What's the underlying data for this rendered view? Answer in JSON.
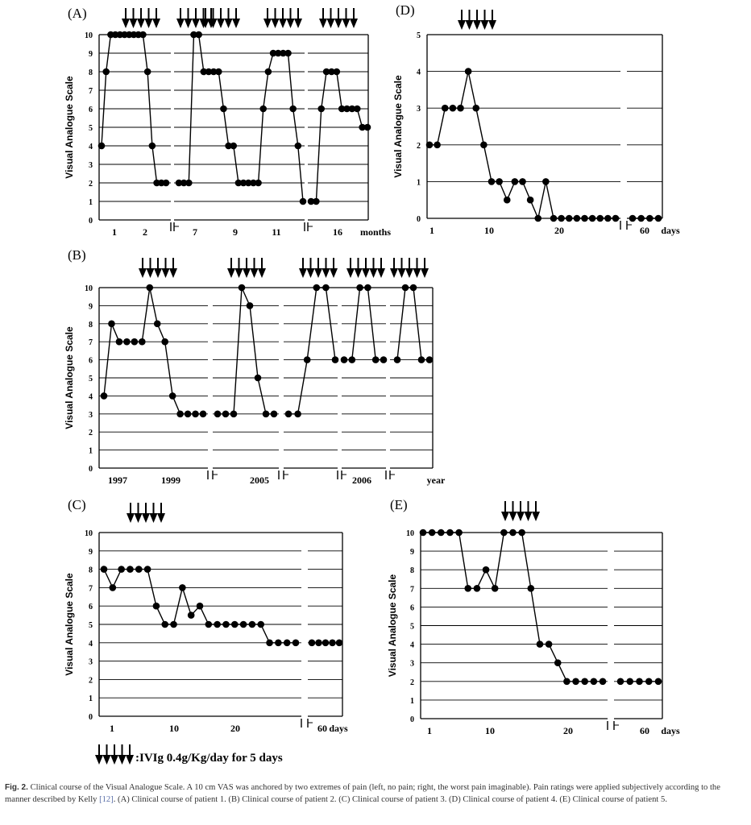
{
  "caption": {
    "label": "Fig. 2.",
    "text": "Clinical course of the Visual Analogue Scale. A 10 cm VAS was anchored by two extremes of pain (left, no pain; right, the worst pain imaginable). Pain ratings were applied subjectively according to the manner described by Kelly ",
    "ref": "[12]",
    "text_after": ". (A) Clinical course of patient 1. (B) Clinical course of patient 2. (C) Clinical course of patient 3. (D) Clinical course of patient 4. (E) Clinical course of patient 5."
  },
  "legend": {
    "text": ":IVIg 0.4g/Kg/day for 5 days"
  },
  "colors": {
    "line": "#000000",
    "grid": "#000000",
    "text": "#000000"
  },
  "chart_data": [
    {
      "id": "A",
      "panel_label": "(A)",
      "type": "line",
      "ylabel": "Visual Analogue Scale",
      "ylim": [
        0,
        10
      ],
      "yticks": [
        "0",
        "1",
        "2",
        "3",
        "4",
        "5",
        "6",
        "7",
        "8",
        "9",
        "10"
      ],
      "xticks": [
        "1",
        "2",
        "7",
        "9",
        "11",
        "16"
      ],
      "xunit": "months",
      "grid": true,
      "segments": [
        [
          4,
          8,
          10,
          10,
          10,
          10,
          10,
          10,
          10,
          10,
          8,
          4,
          2,
          2,
          2
        ],
        [
          2,
          2,
          2,
          10,
          10,
          8,
          8,
          8,
          8,
          6,
          4,
          4,
          2,
          2,
          2,
          2,
          2,
          6,
          8,
          9,
          9,
          9,
          9,
          6,
          4,
          1
        ],
        [
          1,
          1,
          6,
          8,
          8,
          8,
          6,
          6,
          6,
          6,
          5,
          5
        ]
      ],
      "ivig_arrows": 4
    },
    {
      "id": "B",
      "panel_label": "(B)",
      "type": "line",
      "ylabel": "Visual Analogue Scale",
      "ylim": [
        0,
        10
      ],
      "yticks": [
        "0",
        "1",
        "2",
        "3",
        "4",
        "5",
        "6",
        "7",
        "8",
        "9",
        "10"
      ],
      "xticks": [
        "1997",
        "1999",
        "2005",
        "2006"
      ],
      "xunit": "year",
      "grid": true,
      "segments": [
        [
          4,
          8,
          7,
          7,
          7,
          7,
          10,
          8,
          7,
          4,
          3,
          3,
          3,
          3
        ],
        [
          3,
          3,
          3,
          10,
          9,
          5,
          3,
          3
        ],
        [
          3,
          3,
          6,
          10,
          10,
          6
        ],
        [
          6,
          6,
          10,
          10,
          6,
          6
        ],
        [
          6,
          10,
          10,
          6,
          6
        ]
      ],
      "ivig_arrows": 5
    },
    {
      "id": "C",
      "panel_label": "(C)",
      "type": "line",
      "ylabel": "Visual Analogue Scale",
      "ylim": [
        0,
        10
      ],
      "yticks": [
        "0",
        "1",
        "2",
        "3",
        "4",
        "5",
        "6",
        "7",
        "8",
        "9",
        "10"
      ],
      "xticks": [
        "1",
        "10",
        "20",
        "60"
      ],
      "xunit": "days",
      "grid": true,
      "segments": [
        [
          8,
          7,
          8,
          8,
          8,
          8,
          6,
          5,
          5,
          7,
          5.5,
          6,
          5,
          5,
          5,
          5,
          5,
          5,
          5,
          4,
          4,
          4,
          4
        ],
        [
          4,
          4,
          4,
          4,
          4
        ]
      ],
      "ivig_arrows": 1
    },
    {
      "id": "D",
      "panel_label": "(D)",
      "type": "line",
      "ylabel": "Visual Analogue Scale",
      "ylim": [
        0,
        5
      ],
      "yticks": [
        "0",
        "1",
        "2",
        "3",
        "4",
        "5"
      ],
      "xticks": [
        "1",
        "10",
        "20",
        "60"
      ],
      "xunit": "days",
      "grid": true,
      "segments": [
        [
          2,
          2,
          3,
          3,
          3,
          4,
          3,
          2,
          1,
          1,
          0.5,
          1,
          1,
          0.5,
          0,
          1,
          0,
          0,
          0,
          0,
          0,
          0,
          0,
          0,
          0
        ],
        [
          0,
          0,
          0,
          0
        ]
      ],
      "ivig_arrows": 1
    },
    {
      "id": "E",
      "panel_label": "(E)",
      "type": "line",
      "ylabel": "Visual Analogue Scale",
      "ylim": [
        0,
        10
      ],
      "yticks": [
        "0",
        "1",
        "2",
        "3",
        "4",
        "5",
        "6",
        "7",
        "8",
        "9",
        "10"
      ],
      "xticks": [
        "1",
        "10",
        "20",
        "60"
      ],
      "xunit": "days",
      "grid": true,
      "segments": [
        [
          10,
          10,
          10,
          10,
          10,
          7,
          7,
          8,
          7,
          10,
          10,
          10,
          7,
          4,
          4,
          3,
          2,
          2,
          2,
          2,
          2
        ],
        [
          2,
          2,
          2,
          2,
          2
        ]
      ],
      "ivig_arrows": 1
    }
  ]
}
